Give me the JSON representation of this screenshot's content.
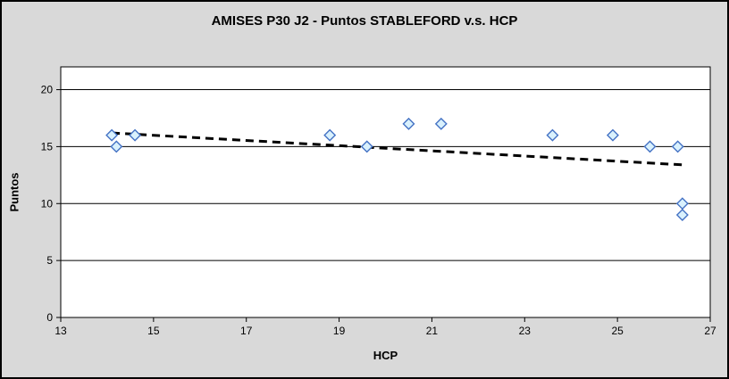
{
  "window": {
    "background_color": "#d9d9d9",
    "plot_background_color": "#ffffff",
    "border_color": "#000000"
  },
  "chart_data": {
    "type": "scatter",
    "title": "AMISES P30 J2 - Puntos STABLEFORD v.s. HCP",
    "xlabel": "HCP",
    "ylabel": "Puntos",
    "xlim": [
      13,
      27
    ],
    "ylim": [
      0,
      22
    ],
    "x_ticks": [
      13,
      15,
      17,
      19,
      21,
      23,
      25,
      27
    ],
    "y_ticks": [
      0,
      5,
      10,
      15,
      20
    ],
    "grid": "horizontal",
    "legend": "none",
    "series": [
      {
        "name": "Puntos STABLEFORD",
        "marker": "diamond",
        "marker_fill": "#d9f1fd",
        "marker_stroke": "#4472c4",
        "points": [
          {
            "x": 14.1,
            "y": 16
          },
          {
            "x": 14.2,
            "y": 15
          },
          {
            "x": 14.6,
            "y": 16
          },
          {
            "x": 18.8,
            "y": 16
          },
          {
            "x": 19.6,
            "y": 15
          },
          {
            "x": 20.5,
            "y": 17
          },
          {
            "x": 21.2,
            "y": 17
          },
          {
            "x": 23.6,
            "y": 16
          },
          {
            "x": 24.9,
            "y": 16
          },
          {
            "x": 25.7,
            "y": 15
          },
          {
            "x": 26.3,
            "y": 15
          },
          {
            "x": 26.4,
            "y": 10
          },
          {
            "x": 26.4,
            "y": 9
          }
        ]
      }
    ],
    "trendline": {
      "style": "dashed",
      "color": "#000000",
      "x1": 14.1,
      "y1": 16.2,
      "x2": 26.4,
      "y2": 13.4
    }
  }
}
